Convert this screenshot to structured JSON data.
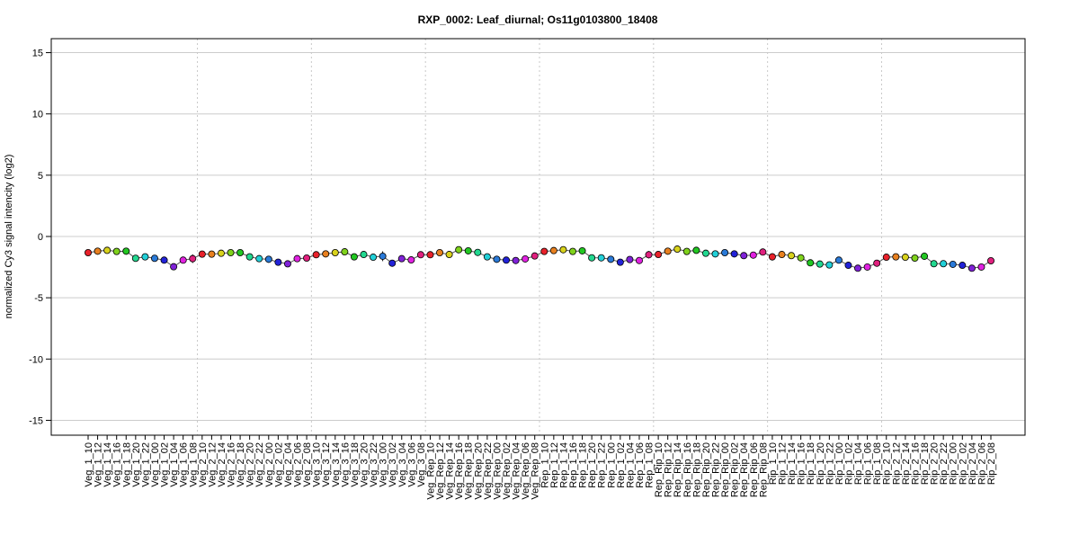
{
  "chart_data": {
    "type": "line",
    "title": "RXP_0002: Leaf_diurnal; Os11g0103800_18408",
    "xlabel": "",
    "ylabel": "normalized Cy3 signal intencity (log2)",
    "ylim": [
      -16,
      16
    ],
    "yticks": [
      -15,
      -10,
      -5,
      0,
      5,
      10,
      15
    ],
    "grid": true,
    "groups": [
      "Veg_1",
      "Veg_2",
      "Veg_3",
      "Veg_Rep",
      "Rep_1",
      "Rep_Rip",
      "Rip_1",
      "Rip_2"
    ],
    "times": [
      "10",
      "12",
      "14",
      "16",
      "18",
      "20",
      "22",
      "00",
      "02",
      "04",
      "06",
      "08"
    ],
    "categories": [
      "Veg_1_10",
      "Veg_1_12",
      "Veg_1_14",
      "Veg_1_16",
      "Veg_1_18",
      "Veg_1_20",
      "Veg_1_22",
      "Veg_1_00",
      "Veg_1_02",
      "Veg_1_04",
      "Veg_1_06",
      "Veg_1_08",
      "Veg_2_10",
      "Veg_2_12",
      "Veg_2_14",
      "Veg_2_16",
      "Veg_2_18",
      "Veg_2_20",
      "Veg_2_22",
      "Veg_2_00",
      "Veg_2_02",
      "Veg_2_04",
      "Veg_2_06",
      "Veg_2_08",
      "Veg_3_10",
      "Veg_3_12",
      "Veg_3_14",
      "Veg_3_16",
      "Veg_3_18",
      "Veg_3_20",
      "Veg_3_22",
      "Veg_3_00",
      "Veg_3_02",
      "Veg_3_04",
      "Veg_3_06",
      "Veg_3_08",
      "Veg_Rep_10",
      "Veg_Rep_12",
      "Veg_Rep_14",
      "Veg_Rep_16",
      "Veg_Rep_18",
      "Veg_Rep_20",
      "Veg_Rep_22",
      "Veg_Rep_00",
      "Veg_Rep_02",
      "Veg_Rep_04",
      "Veg_Rep_06",
      "Veg_Rep_08",
      "Rep_1_10",
      "Rep_1_12",
      "Rep_1_14",
      "Rep_1_16",
      "Rep_1_18",
      "Rep_1_20",
      "Rep_1_22",
      "Rep_1_00",
      "Rep_1_02",
      "Rep_1_04",
      "Rep_1_06",
      "Rep_1_08",
      "Rep_Rip_10",
      "Rep_Rip_12",
      "Rep_Rip_14",
      "Rep_Rip_16",
      "Rep_Rip_18",
      "Rep_Rip_20",
      "Rep_Rip_22",
      "Rep_Rip_00",
      "Rep_Rip_02",
      "Rep_Rip_04",
      "Rep_Rip_06",
      "Rep_Rip_08",
      "Rip_1_10",
      "Rip_1_12",
      "Rip_1_14",
      "Rip_1_16",
      "Rip_1_18",
      "Rip_1_20",
      "Rip_1_22",
      "Rip_1_00",
      "Rip_1_02",
      "Rip_1_04",
      "Rip_1_06",
      "Rip_1_08",
      "Rip_2_10",
      "Rip_2_12",
      "Rip_2_14",
      "Rip_2_16",
      "Rip_2_18",
      "Rip_2_20",
      "Rip_2_22",
      "Rip_2_00",
      "Rip_2_02",
      "Rip_2_04",
      "Rip_2_06",
      "Rip_2_08"
    ],
    "values": [
      -1.32,
      -1.2,
      -1.13,
      -1.22,
      -1.2,
      -1.78,
      -1.66,
      -1.78,
      -1.93,
      -2.47,
      -1.93,
      -1.81,
      -1.44,
      -1.44,
      -1.37,
      -1.32,
      -1.32,
      -1.66,
      -1.81,
      -1.86,
      -2.1,
      -2.23,
      -1.81,
      -1.76,
      -1.49,
      -1.42,
      -1.32,
      -1.25,
      -1.66,
      -1.47,
      -1.69,
      -1.61,
      -2.18,
      -1.81,
      -1.91,
      -1.49,
      -1.49,
      -1.32,
      -1.47,
      -1.08,
      -1.17,
      -1.3,
      -1.66,
      -1.86,
      -1.93,
      -1.96,
      -1.83,
      -1.59,
      -1.22,
      -1.15,
      -1.08,
      -1.22,
      -1.17,
      -1.74,
      -1.74,
      -1.86,
      -2.1,
      -1.88,
      -1.96,
      -1.49,
      -1.47,
      -1.2,
      -1.03,
      -1.22,
      -1.13,
      -1.37,
      -1.42,
      -1.32,
      -1.42,
      -1.56,
      -1.52,
      -1.27,
      -1.66,
      -1.47,
      -1.56,
      -1.74,
      -2.15,
      -2.25,
      -2.32,
      -1.93,
      -2.35,
      -2.59,
      -2.49,
      -2.18,
      -1.69,
      -1.66,
      -1.69,
      -1.76,
      -1.61,
      -2.22,
      -2.22,
      -2.27,
      -2.35,
      -2.59,
      -2.49,
      -1.98
    ],
    "errors": [
      0.08,
      0.08,
      0.06,
      0.1,
      0.08,
      0.1,
      0.08,
      0.08,
      0.08,
      0.08,
      0.1,
      0.35,
      0.1,
      0.08,
      0.08,
      0.2,
      0.2,
      0.08,
      0.08,
      0.08,
      0.08,
      0.08,
      0.08,
      0.08,
      0.08,
      0.08,
      0.08,
      0.08,
      0.08,
      0.2,
      0.08,
      0.4,
      0.1,
      0.08,
      0.08,
      0.08,
      0.08,
      0.1,
      0.08,
      0.08,
      0.08,
      0.08,
      0.08,
      0.08,
      0.08,
      0.08,
      0.08,
      0.08,
      0.08,
      0.08,
      0.08,
      0.08,
      0.08,
      0.08,
      0.08,
      0.08,
      0.08,
      0.08,
      0.08,
      0.3,
      0.08,
      0.08,
      0.08,
      0.08,
      0.08,
      0.08,
      0.08,
      0.08,
      0.08,
      0.08,
      0.08,
      0.1,
      0.3,
      0.08,
      0.08,
      0.08,
      0.08,
      0.08,
      0.08,
      0.08,
      0.08,
      0.08,
      0.08,
      0.08,
      0.08,
      0.08,
      0.08,
      0.08,
      0.3,
      0.08,
      0.08,
      0.08,
      0.08,
      0.08,
      0.08,
      0.1
    ],
    "point_colors": [
      "#e8212a",
      "#e8801f",
      "#d8d21c",
      "#7fd21c",
      "#22c722",
      "#22d890",
      "#22d0d8",
      "#2a7ad8",
      "#2222d8",
      "#8022d8",
      "#e022e0",
      "#e0207e"
    ]
  }
}
